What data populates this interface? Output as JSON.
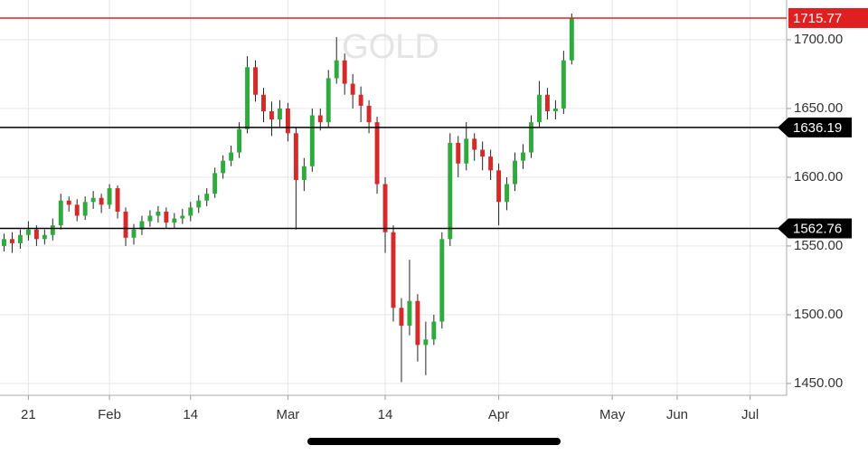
{
  "chart_data": {
    "type": "candlestick",
    "title": "GOLD",
    "x": [
      0,
      1,
      2,
      3,
      4,
      5,
      6,
      7,
      8,
      9,
      10,
      11,
      12,
      13,
      14,
      15,
      16,
      17,
      18,
      19,
      20,
      21,
      22,
      23,
      24,
      25,
      26,
      27,
      28,
      29,
      30,
      31,
      32,
      33,
      34,
      35,
      36,
      37,
      38,
      39,
      40,
      41,
      42,
      43,
      44,
      45,
      46,
      47,
      48,
      49,
      50,
      51,
      52,
      53,
      54,
      55,
      56,
      57,
      58,
      59,
      60,
      61,
      62,
      63,
      64,
      65,
      66,
      67,
      68,
      69,
      70
    ],
    "open": [
      1550,
      1555,
      1552,
      1558,
      1562,
      1555,
      1558,
      1565,
      1583,
      1580,
      1572,
      1582,
      1585,
      1580,
      1592,
      1575,
      1556,
      1562,
      1568,
      1572,
      1575,
      1567,
      1570,
      1572,
      1578,
      1583,
      1588,
      1603,
      1612,
      1618,
      1635,
      1680,
      1660,
      1648,
      1642,
      1650,
      1632,
      1598,
      1608,
      1645,
      1640,
      1672,
      1685,
      1668,
      1660,
      1652,
      1640,
      1595,
      1560,
      1505,
      1492,
      1510,
      1478,
      1482,
      1495,
      1555,
      1625,
      1610,
      1628,
      1620,
      1615,
      1605,
      1582,
      1595,
      1612,
      1618,
      1640,
      1660,
      1648,
      1650,
      1685
    ],
    "high": [
      1559,
      1560,
      1562,
      1568,
      1565,
      1562,
      1570,
      1588,
      1586,
      1584,
      1586,
      1590,
      1588,
      1595,
      1594,
      1578,
      1566,
      1572,
      1576,
      1579,
      1578,
      1574,
      1577,
      1582,
      1587,
      1592,
      1607,
      1616,
      1623,
      1640,
      1688,
      1685,
      1665,
      1655,
      1656,
      1654,
      1636,
      1614,
      1650,
      1650,
      1678,
      1702,
      1690,
      1675,
      1666,
      1656,
      1644,
      1600,
      1565,
      1512,
      1540,
      1515,
      1495,
      1500,
      1560,
      1632,
      1630,
      1640,
      1632,
      1626,
      1620,
      1610,
      1600,
      1618,
      1624,
      1645,
      1670,
      1665,
      1656,
      1692,
      1719
    ],
    "low": [
      1546,
      1545,
      1548,
      1554,
      1550,
      1551,
      1554,
      1562,
      1575,
      1568,
      1569,
      1577,
      1574,
      1577,
      1570,
      1550,
      1551,
      1558,
      1564,
      1567,
      1563,
      1563,
      1566,
      1568,
      1574,
      1579,
      1585,
      1599,
      1608,
      1614,
      1632,
      1655,
      1640,
      1630,
      1636,
      1626,
      1562,
      1590,
      1604,
      1634,
      1636,
      1668,
      1660,
      1650,
      1640,
      1632,
      1588,
      1545,
      1495,
      1451,
      1485,
      1466,
      1456,
      1478,
      1490,
      1550,
      1600,
      1605,
      1612,
      1605,
      1598,
      1565,
      1576,
      1590,
      1606,
      1614,
      1636,
      1642,
      1642,
      1646,
      1682
    ],
    "close": [
      1555,
      1552,
      1558,
      1562,
      1555,
      1558,
      1565,
      1583,
      1580,
      1572,
      1582,
      1585,
      1580,
      1592,
      1575,
      1556,
      1562,
      1568,
      1572,
      1575,
      1567,
      1570,
      1572,
      1578,
      1583,
      1588,
      1603,
      1612,
      1618,
      1635,
      1680,
      1660,
      1648,
      1642,
      1650,
      1632,
      1598,
      1608,
      1645,
      1640,
      1672,
      1685,
      1668,
      1660,
      1652,
      1640,
      1595,
      1560,
      1505,
      1492,
      1510,
      1478,
      1482,
      1495,
      1555,
      1625,
      1610,
      1628,
      1620,
      1615,
      1605,
      1582,
      1595,
      1612,
      1618,
      1640,
      1660,
      1648,
      1650,
      1685,
      1715.77
    ],
    "up_color": "#2eab3c",
    "down_color": "#d42a2a",
    "xlim": [
      -0.5,
      96.5
    ],
    "xticks": [
      {
        "value": 3,
        "label": "21"
      },
      {
        "value": 13,
        "label": "Feb"
      },
      {
        "value": 23,
        "label": "14"
      },
      {
        "value": 35,
        "label": "Mar"
      },
      {
        "value": 47,
        "label": "14"
      },
      {
        "value": 61,
        "label": "Apr"
      },
      {
        "value": 75,
        "label": "May"
      },
      {
        "value": 83,
        "label": "Jun"
      },
      {
        "value": 92,
        "label": "Jul"
      }
    ],
    "ylim": [
      1441.4,
      1728.9
    ],
    "yticks": [
      {
        "value": 1450,
        "label": "1450.00"
      },
      {
        "value": 1500,
        "label": "1500.00"
      },
      {
        "value": 1550,
        "label": "1550.00"
      },
      {
        "value": 1600,
        "label": "1600.00"
      },
      {
        "value": 1650,
        "label": "1650.00"
      },
      {
        "value": 1700,
        "label": "1700.00"
      }
    ],
    "levels": [
      {
        "value": 1715.77,
        "color": "#e02020"
      },
      {
        "value": 1636.19,
        "color": "#000000"
      },
      {
        "value": 1562.76,
        "color": "#000000"
      }
    ],
    "grid": true
  }
}
